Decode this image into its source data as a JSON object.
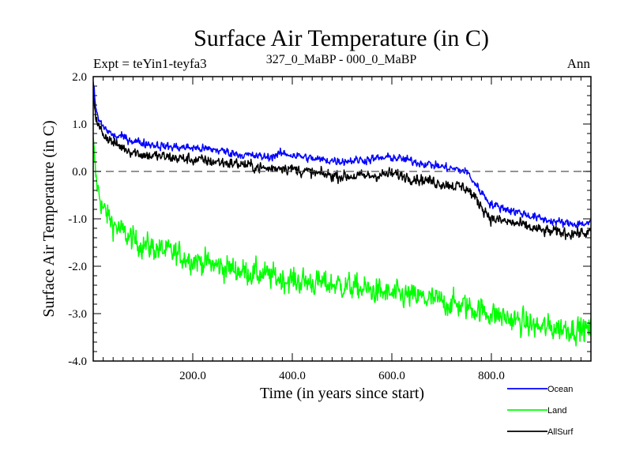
{
  "chart_data": {
    "type": "line",
    "title": "Surface Air Temperature (in C)",
    "subtitle_left": "Expt = teYin1-teyfa3",
    "subtitle_center": "327_0_MaBP - 000_0_MaBP",
    "subtitle_right": "Ann",
    "xlabel": "Time (in years since start)",
    "ylabel": "Surface Air Temperature (in C)",
    "xlim": [
      0,
      1000
    ],
    "ylim": [
      -4.0,
      2.0
    ],
    "xticks": [
      200,
      400,
      600,
      800
    ],
    "xtick_labels": [
      "200.0",
      "400.0",
      "600.0",
      "800.0"
    ],
    "yticks": [
      -4.0,
      -3.0,
      -2.0,
      -1.0,
      0.0,
      1.0,
      2.0
    ],
    "ytick_labels": [
      "-4.0",
      "-3.0",
      "-2.0",
      "-1.0",
      "0.0",
      "1.0",
      "2.0"
    ],
    "zero_line": 0.0,
    "legend_position": "bottom-right",
    "series": [
      {
        "name": "Ocean",
        "color": "#0000ff",
        "noise": 0.06,
        "x": [
          0,
          5,
          10,
          20,
          40,
          60,
          80,
          100,
          150,
          200,
          250,
          300,
          350,
          380,
          400,
          450,
          500,
          550,
          600,
          650,
          700,
          750,
          770,
          800,
          850,
          900,
          950,
          1000
        ],
        "values": [
          1.9,
          1.35,
          1.1,
          0.95,
          0.75,
          0.72,
          0.65,
          0.6,
          0.52,
          0.5,
          0.45,
          0.35,
          0.3,
          0.38,
          0.35,
          0.25,
          0.22,
          0.25,
          0.3,
          0.2,
          0.1,
          0.0,
          -0.3,
          -0.7,
          -0.85,
          -1.0,
          -1.1,
          -1.1
        ]
      },
      {
        "name": "Land",
        "color": "#00ff00",
        "noise": 0.18,
        "x": [
          0,
          5,
          10,
          20,
          40,
          60,
          80,
          100,
          150,
          200,
          250,
          300,
          350,
          400,
          450,
          500,
          550,
          600,
          650,
          700,
          750,
          800,
          850,
          900,
          950,
          1000
        ],
        "values": [
          0.6,
          -0.1,
          -0.4,
          -0.8,
          -1.1,
          -1.3,
          -1.45,
          -1.55,
          -1.7,
          -1.85,
          -2.0,
          -2.1,
          -2.2,
          -2.3,
          -2.35,
          -2.4,
          -2.5,
          -2.6,
          -2.65,
          -2.75,
          -2.85,
          -3.0,
          -3.15,
          -3.3,
          -3.3,
          -3.35
        ]
      },
      {
        "name": "AllSurf",
        "color": "#000000",
        "noise": 0.08,
        "x": [
          0,
          5,
          10,
          20,
          40,
          60,
          80,
          100,
          150,
          200,
          250,
          300,
          350,
          380,
          400,
          450,
          500,
          550,
          600,
          650,
          700,
          750,
          770,
          800,
          850,
          900,
          950,
          1000
        ],
        "values": [
          1.7,
          1.2,
          0.95,
          0.8,
          0.6,
          0.5,
          0.42,
          0.35,
          0.3,
          0.25,
          0.2,
          0.15,
          0.05,
          0.1,
          0.05,
          -0.05,
          -0.1,
          -0.1,
          -0.05,
          -0.15,
          -0.25,
          -0.35,
          -0.6,
          -1.0,
          -1.1,
          -1.25,
          -1.3,
          -1.3
        ]
      }
    ]
  }
}
